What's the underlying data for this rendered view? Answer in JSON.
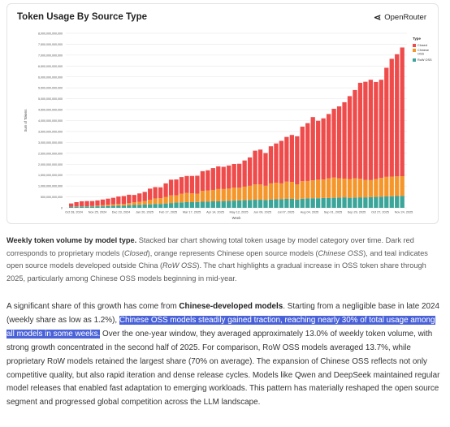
{
  "card": {
    "title": "Token Usage By Source Type",
    "brand": "OpenRouter",
    "brand_icon": "openrouter-logo-icon"
  },
  "chart_data": {
    "type": "bar",
    "stacked": true,
    "ylabel": "Sum of Tokens",
    "xlabel": "Week",
    "ylim": [
      0,
      8000000000000
    ],
    "yticks": [
      "0",
      "500,000,000,000",
      "1,000,000,000,000",
      "1,500,000,000,000",
      "2,000,000,000,000",
      "2,500,000,000,000",
      "3,000,000,000,000",
      "3,500,000,000,000",
      "4,000,000,000,000",
      "4,500,000,000,000",
      "5,000,000,000,000",
      "5,500,000,000,000",
      "6,000,000,000,000",
      "6,500,000,000,000",
      "7,000,000,000,000",
      "7,500,000,000,000",
      "8,000,000,000,000"
    ],
    "xticks": [
      "Oct 28, 2024",
      "Nov 25, 2024",
      "Dec 23, 2024",
      "Jan 20, 2025",
      "Feb 17, 2025",
      "Mar 17, 2025",
      "Apr 14, 2025",
      "May 12, 2025",
      "Jun 09, 2025",
      "Jul 07, 2025",
      "Aug 04, 2025",
      "Sep 01, 2025",
      "Sep 29, 2025",
      "Oct 27, 2025",
      "Nov 24, 2025"
    ],
    "legend_title": "Type",
    "legend_position": "right",
    "series": [
      {
        "name": "Closed",
        "color": "#ef4b4b",
        "values": [
          150,
          200,
          230,
          240,
          230,
          240,
          260,
          280,
          300,
          340,
          360,
          380,
          340,
          380,
          420,
          520,
          520,
          500,
          620,
          720,
          730,
          760,
          780,
          800,
          820,
          900,
          930,
          1000,
          1040,
          1020,
          1060,
          1080,
          1100,
          1200,
          1300,
          1550,
          1600,
          1500,
          1700,
          1800,
          1950,
          2050,
          2150,
          2200,
          2500,
          2650,
          2900,
          2700,
          2800,
          2950,
          3150,
          3300,
          3500,
          3800,
          4050,
          4400,
          4500,
          4600,
          4450,
          4500,
          5000,
          5400,
          5600,
          5900
        ]
      },
      {
        "name": "Chinese OSS",
        "color": "#f5962b",
        "values": [
          0,
          10,
          10,
          10,
          20,
          30,
          50,
          60,
          70,
          80,
          80,
          100,
          120,
          140,
          160,
          200,
          250,
          260,
          300,
          350,
          330,
          400,
          420,
          400,
          380,
          500,
          500,
          520,
          560,
          550,
          560,
          600,
          580,
          620,
          650,
          700,
          700,
          650,
          740,
          760,
          720,
          790,
          780,
          700,
          800,
          800,
          820,
          850,
          850,
          900,
          930,
          880,
          860,
          860,
          880,
          850,
          800,
          780,
          820,
          860,
          900,
          900,
          900,
          900
        ]
      },
      {
        "name": "RoW OSS",
        "color": "#3ba59a",
        "values": [
          50,
          50,
          60,
          60,
          60,
          70,
          70,
          80,
          90,
          100,
          100,
          120,
          130,
          140,
          150,
          160,
          180,
          180,
          200,
          220,
          240,
          250,
          260,
          260,
          270,
          280,
          290,
          300,
          300,
          310,
          320,
          330,
          340,
          350,
          360,
          370,
          370,
          360,
          380,
          390,
          400,
          410,
          410,
          380,
          420,
          430,
          440,
          440,
          450,
          450,
          460,
          470,
          480,
          460,
          470,
          480,
          480,
          490,
          500,
          510,
          520,
          530,
          540,
          550
        ]
      }
    ],
    "grid": true
  },
  "caption": {
    "bold": "Weekly token volume by model type.",
    "text1": " Stacked bar chart showing total token usage by model category over time. Dark red corresponds to proprietary models (",
    "closed": "Closed",
    "text2": "), orange represents Chinese open source models (",
    "cn": "Chinese OSS",
    "text3": "), and teal indicates open source models developed outside China (",
    "row": "RoW OSS",
    "text4": "). The chart highlights a gradual increase in OSS token share through 2025, particularly among Chinese OSS models beginning in mid-year."
  },
  "paragraph": {
    "t1": "A significant share of this growth has come from ",
    "b1": "Chinese-developed models",
    "t2": ". Starting from a negligible base in late 2024 (weekly share as low as 1.2%), ",
    "highlight": "Chinese OSS models steadily gained traction, reaching nearly 30% of total usage among all models in some weeks.",
    "t3": " Over the one-year window, they averaged approximately 13.0% of weekly token volume, with strong growth concentrated in the second half of 2025. For comparison, RoW OSS models averaged 13.7%, while proprietary RoW models retained the largest share (70% on average). The expansion of Chinese OSS reflects not only competitive quality, but also rapid iteration and dense release cycles. Models like Qwen and DeepSeek maintained regular model releases that enabled fast adaptation to emerging workloads. This pattern has materially reshaped the open source segment and progressed global competition across the LLM landscape."
  }
}
